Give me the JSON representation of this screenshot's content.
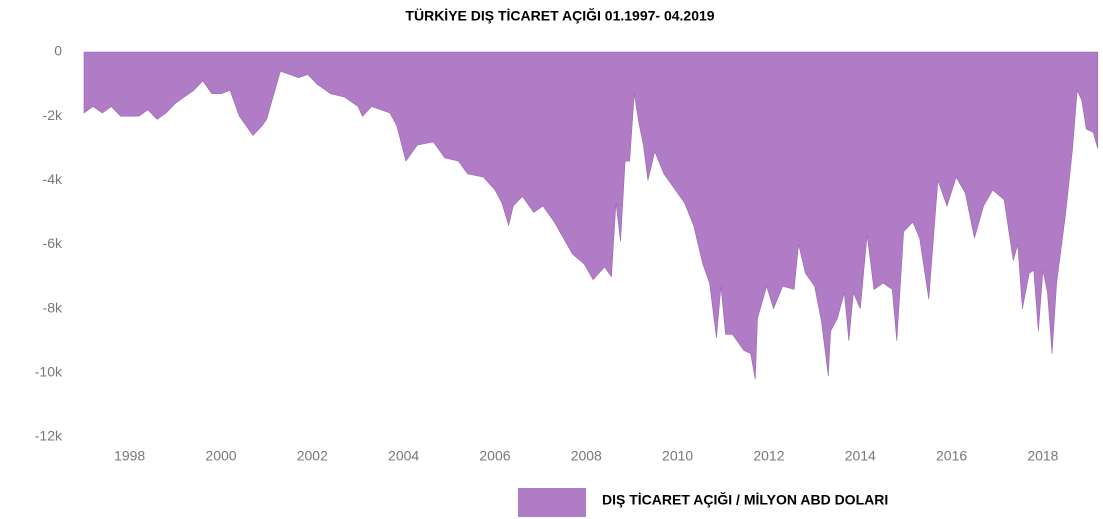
{
  "chart_data": {
    "type": "area",
    "title": "TÜRKİYE DIŞ TİCARET AÇIĞI    01.1997- 04.2019",
    "x": [
      1997.0,
      1997.2,
      1997.4,
      1997.6,
      1997.8,
      1998.0,
      1998.2,
      1998.4,
      1998.6,
      1998.8,
      1999.0,
      1999.2,
      1999.4,
      1999.6,
      1999.8,
      2000.0,
      2000.2,
      2000.4,
      2000.7,
      2000.9,
      2001.0,
      2001.3,
      2001.7,
      2001.9,
      2002.1,
      2002.4,
      2002.7,
      2003.0,
      2003.1,
      2003.3,
      2003.7,
      2003.85,
      2004.05,
      2004.3,
      2004.65,
      2004.9,
      2005.2,
      2005.4,
      2005.75,
      2006.0,
      2006.15,
      2006.3,
      2006.4,
      2006.6,
      2006.85,
      2007.05,
      2007.3,
      2007.5,
      2007.7,
      2007.95,
      2008.15,
      2008.4,
      2008.55,
      2008.65,
      2008.75,
      2008.85,
      2008.95,
      2009.05,
      2009.15,
      2009.25,
      2009.35,
      2009.5,
      2009.7,
      2009.9,
      2010.15,
      2010.35,
      2010.55,
      2010.7,
      2010.85,
      2010.95,
      2011.05,
      2011.2,
      2011.45,
      2011.6,
      2011.7,
      2011.75,
      2011.95,
      2012.1,
      2012.3,
      2012.55,
      2012.65,
      2012.8,
      2013.0,
      2013.15,
      2013.3,
      2013.35,
      2013.5,
      2013.65,
      2013.75,
      2013.85,
      2014.0,
      2014.15,
      2014.3,
      2014.5,
      2014.7,
      2014.8,
      2014.95,
      2015.15,
      2015.3,
      2015.5,
      2015.7,
      2015.9,
      2016.1,
      2016.3,
      2016.5,
      2016.7,
      2016.9,
      2017.15,
      2017.35,
      2017.45,
      2017.55,
      2017.7,
      2017.8,
      2017.9,
      2018.0,
      2018.1,
      2018.2,
      2018.3,
      2018.5,
      2018.65,
      2018.75,
      2018.85,
      2018.95,
      2019.1,
      2019.2
    ],
    "series": [
      {
        "name": "DIŞ TİCARET AÇIĞI / MİLYON ABD DOLARI",
        "color": "#b07cc6",
        "values": [
          -1900,
          -1700,
          -1900,
          -1700,
          -2000,
          -2000,
          -2000,
          -1800,
          -2100,
          -1900,
          -1600,
          -1400,
          -1200,
          -900,
          -1300,
          -1300,
          -1200,
          -2000,
          -2600,
          -2300,
          -2100,
          -600,
          -800,
          -700,
          -1000,
          -1300,
          -1400,
          -1700,
          -2000,
          -1700,
          -1900,
          -2300,
          -3400,
          -2900,
          -2800,
          -3300,
          -3400,
          -3800,
          -3900,
          -4300,
          -4700,
          -5400,
          -4800,
          -4500,
          -5000,
          -4800,
          -5300,
          -5800,
          -6300,
          -6600,
          -7100,
          -6700,
          -7000,
          -4700,
          -5900,
          -3400,
          -3400,
          -1300,
          -2200,
          -2900,
          -4000,
          -3100,
          -3800,
          -4200,
          -4700,
          -5400,
          -6600,
          -7200,
          -8900,
          -7300,
          -8800,
          -8800,
          -9300,
          -9400,
          -10200,
          -8300,
          -7300,
          -8000,
          -7300,
          -7400,
          -6000,
          -6900,
          -7300,
          -8400,
          -10100,
          -8700,
          -8300,
          -7500,
          -9000,
          -7500,
          -8000,
          -5700,
          -7400,
          -7200,
          -7400,
          -9000,
          -5600,
          -5300,
          -5800,
          -7700,
          -4000,
          -4800,
          -3900,
          -4400,
          -5800,
          -4800,
          -4300,
          -4600,
          -6500,
          -6000,
          -8000,
          -6900,
          -6800,
          -8700,
          -6800,
          -7500,
          -9400,
          -7200,
          -5000,
          -3000,
          -1200,
          -1500,
          -2400,
          -2500,
          -3000
        ]
      }
    ],
    "xlim": [
      1997.0,
      2019.25
    ],
    "xticks": [
      1998,
      2000,
      2002,
      2004,
      2006,
      2008,
      2010,
      2012,
      2014,
      2016,
      2018
    ],
    "ylim": [
      -12000,
      0
    ],
    "yticks": [
      {
        "value": -12000,
        "label": "-12k"
      },
      {
        "value": -10000,
        "label": "-10k"
      },
      {
        "value": -8000,
        "label": "-8k"
      },
      {
        "value": -6000,
        "label": "-6k"
      },
      {
        "value": -4000,
        "label": "-4k"
      },
      {
        "value": -2000,
        "label": "-2k"
      },
      0
    ],
    "grid": false
  }
}
